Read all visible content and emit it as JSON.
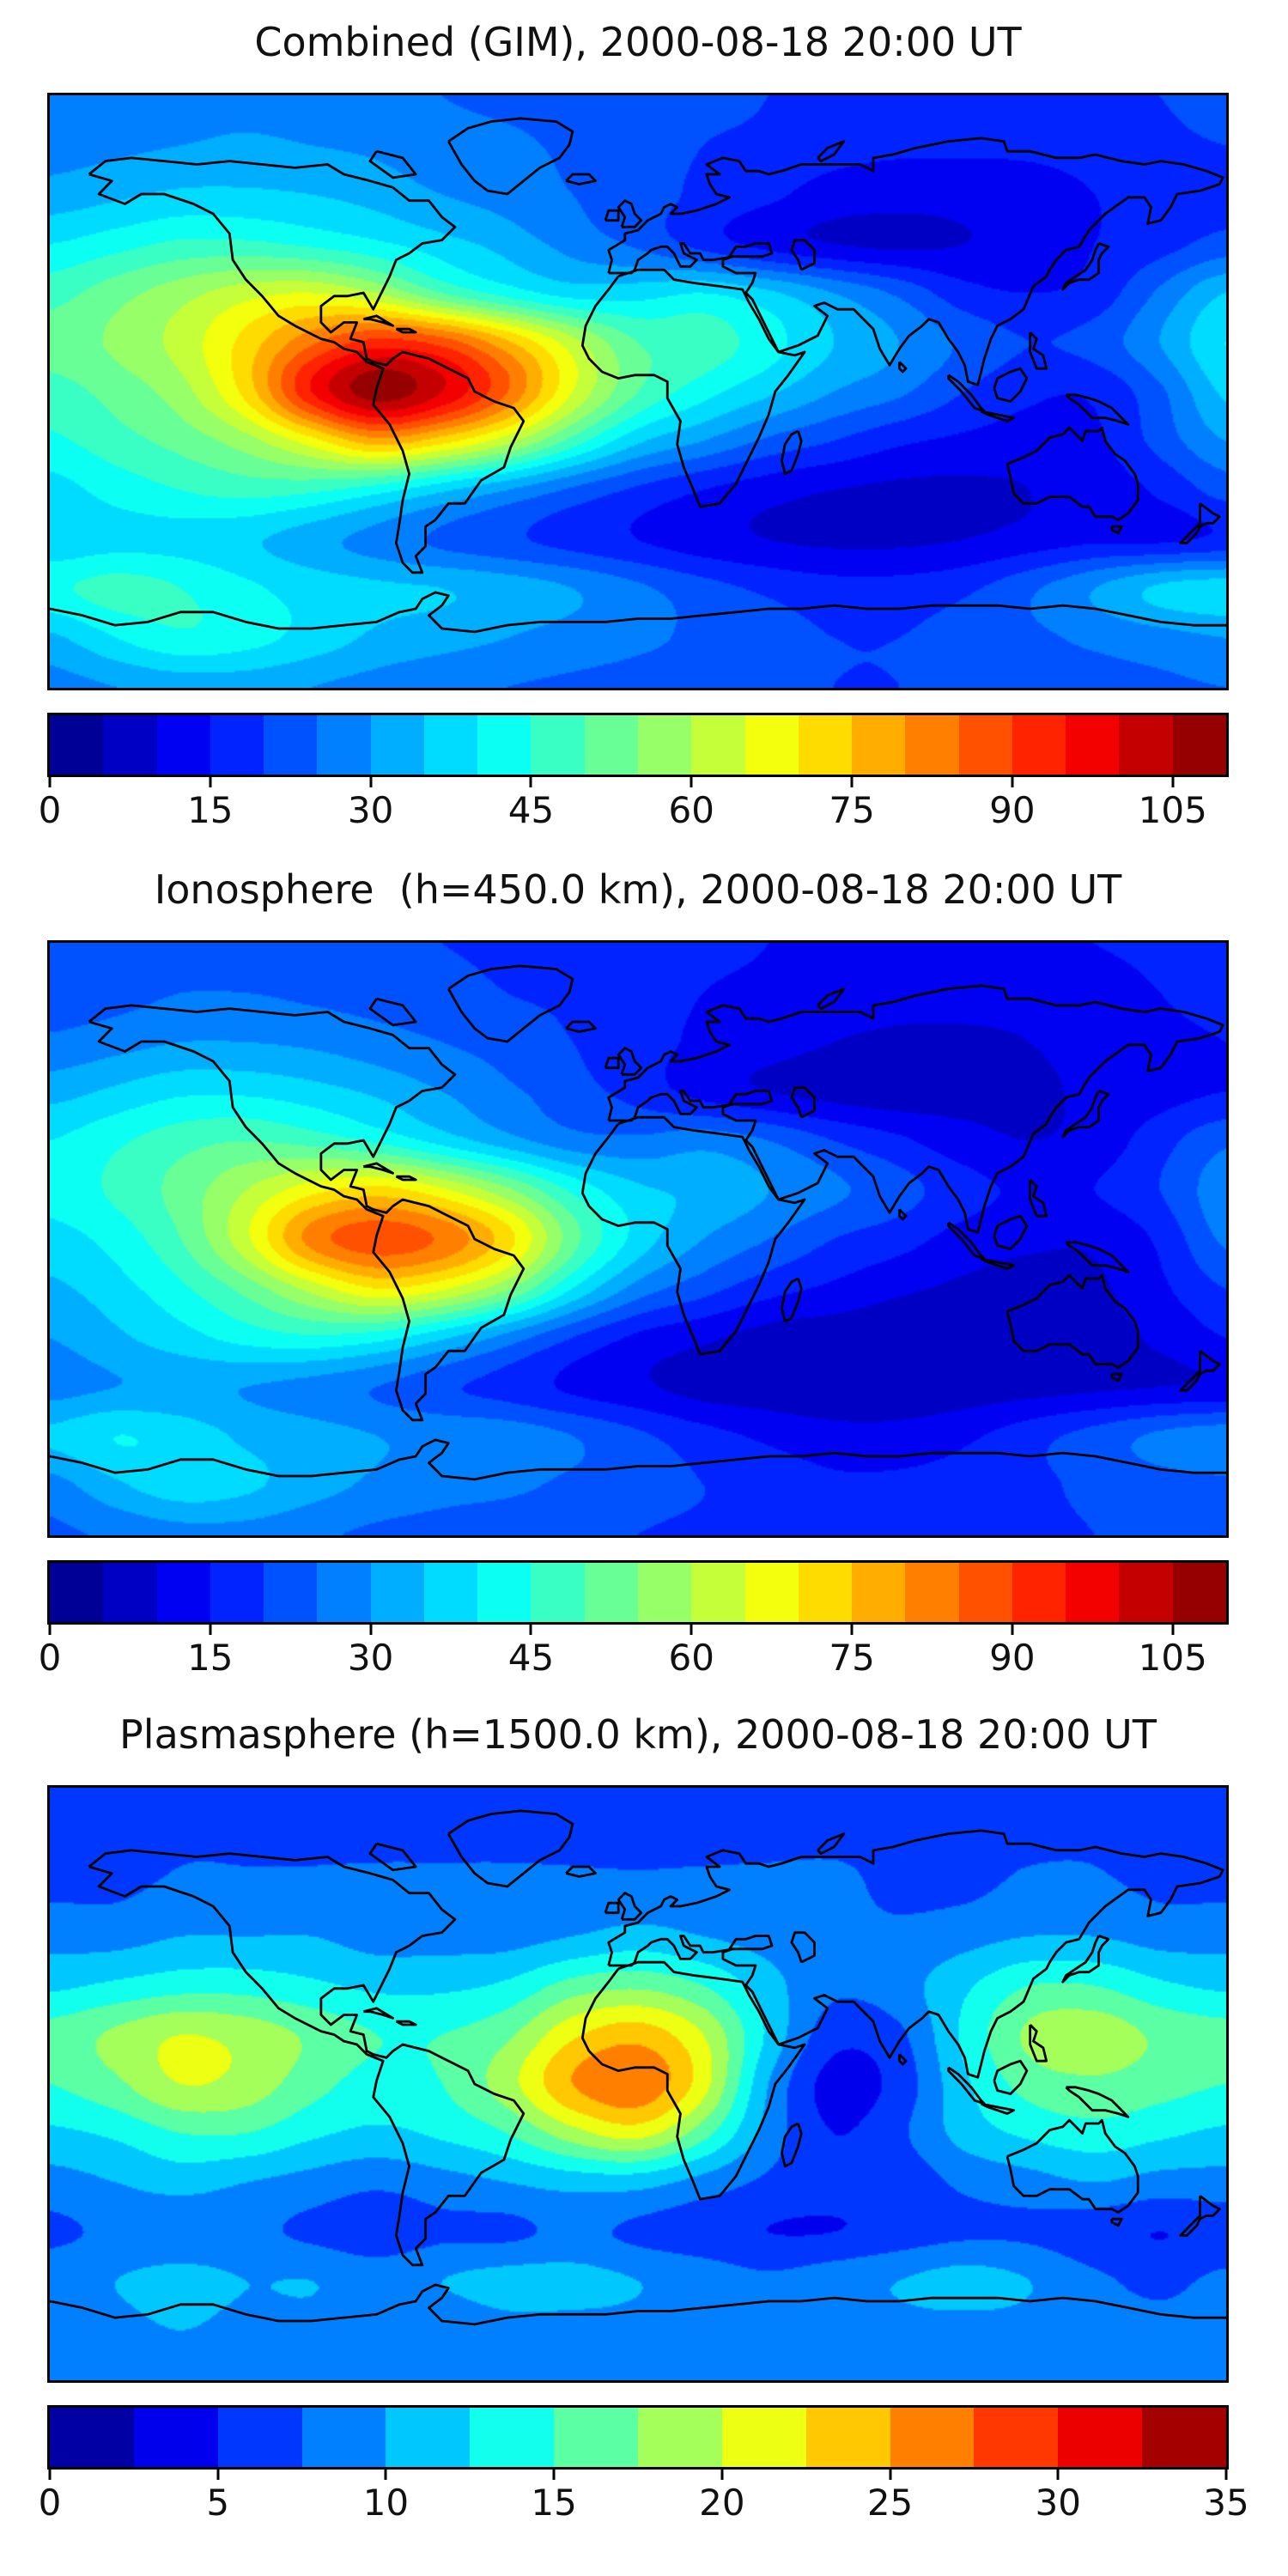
{
  "figure": {
    "background": "#ffffff",
    "n_panels": 3,
    "projection": "equirectangular",
    "lon_range": [
      -180,
      180
    ],
    "lat_range": [
      -90,
      90
    ],
    "colormap": "jet",
    "coastline_color": "#000000"
  },
  "chart_data": [
    {
      "type": "heatmap",
      "title": "Combined (GIM), 2000-08-18 20:00 UT",
      "levels": {
        "min": 0,
        "max": 110,
        "step": 5
      },
      "colorbar_ticks": [
        0,
        15,
        30,
        45,
        60,
        75,
        90,
        105
      ],
      "lons": [
        -180,
        -160,
        -140,
        -120,
        -100,
        -80,
        -60,
        -40,
        -20,
        0,
        20,
        40,
        60,
        80,
        100,
        120,
        140,
        160,
        180
      ],
      "lats": [
        90,
        75,
        60,
        45,
        30,
        15,
        0,
        -15,
        -30,
        -45,
        -60,
        -75,
        -90
      ],
      "values": [
        [
          27,
          28,
          28,
          28,
          27,
          26,
          25,
          24,
          23,
          22,
          21,
          20,
          19,
          18,
          18,
          18,
          19,
          20,
          21
        ],
        [
          28,
          29,
          30,
          31,
          30,
          29,
          27,
          26,
          24,
          22,
          20,
          19,
          17,
          16,
          16,
          16,
          17,
          19,
          20
        ],
        [
          32,
          34,
          36,
          36,
          35,
          33,
          30,
          28,
          25,
          22,
          19,
          16,
          13,
          12,
          12,
          13,
          15,
          17,
          18
        ],
        [
          40,
          43,
          46,
          46,
          44,
          41,
          37,
          33,
          28,
          24,
          18,
          13,
          10,
          9,
          10,
          12,
          15,
          18,
          22
        ],
        [
          48,
          53,
          58,
          63,
          65,
          60,
          50,
          43,
          38,
          38,
          40,
          36,
          30,
          24,
          17,
          15,
          17,
          26,
          35
        ],
        [
          52,
          56,
          62,
          72,
          84,
          92,
          88,
          76,
          62,
          50,
          48,
          42,
          35,
          30,
          24,
          20,
          22,
          30,
          40
        ],
        [
          48,
          52,
          58,
          72,
          95,
          108,
          100,
          85,
          65,
          50,
          42,
          36,
          30,
          26,
          20,
          16,
          16,
          24,
          36
        ],
        [
          44,
          48,
          52,
          58,
          68,
          78,
          72,
          62,
          48,
          36,
          30,
          24,
          20,
          16,
          14,
          13,
          14,
          22,
          30
        ],
        [
          38,
          42,
          45,
          47,
          46,
          42,
          36,
          30,
          24,
          19,
          15,
          12,
          10,
          9,
          9,
          10,
          12,
          16,
          22
        ],
        [
          36,
          38,
          38,
          36,
          32,
          28,
          24,
          21,
          18,
          15,
          12,
          10,
          9,
          9,
          10,
          12,
          14,
          14,
          16
        ],
        [
          44,
          47,
          45,
          41,
          38,
          36,
          35,
          33,
          30,
          26,
          22,
          19,
          17,
          17,
          19,
          24,
          30,
          36,
          38
        ],
        [
          34,
          40,
          44,
          42,
          38,
          34,
          32,
          30,
          28,
          26,
          24,
          22,
          20,
          20,
          22,
          24,
          26,
          28,
          30
        ],
        [
          28,
          30,
          32,
          32,
          30,
          28,
          26,
          25,
          24,
          23,
          22,
          21,
          20,
          20,
          21,
          22,
          23,
          24,
          25
        ]
      ]
    },
    {
      "type": "heatmap",
      "title": "Ionosphere  (h=450.0 km), 2000-08-18 20:00 UT",
      "levels": {
        "min": 0,
        "max": 110,
        "step": 5
      },
      "colorbar_ticks": [
        0,
        15,
        30,
        45,
        60,
        75,
        90,
        105
      ],
      "lons": [
        -180,
        -160,
        -140,
        -120,
        -100,
        -80,
        -60,
        -40,
        -20,
        0,
        20,
        40,
        60,
        80,
        100,
        120,
        140,
        160,
        180
      ],
      "lats": [
        90,
        75,
        60,
        45,
        30,
        15,
        0,
        -15,
        -30,
        -45,
        -60,
        -75,
        -90
      ],
      "values": [
        [
          20,
          21,
          22,
          22,
          22,
          21,
          20,
          19,
          18,
          17,
          16,
          15,
          14,
          14,
          14,
          14,
          15,
          16,
          17
        ],
        [
          22,
          23,
          25,
          25,
          24,
          23,
          22,
          20,
          19,
          17,
          15,
          14,
          13,
          12,
          12,
          12,
          13,
          15,
          16
        ],
        [
          26,
          28,
          30,
          30,
          29,
          27,
          25,
          23,
          20,
          17,
          14,
          12,
          10,
          9,
          9,
          10,
          12,
          14,
          15
        ],
        [
          33,
          36,
          39,
          39,
          37,
          34,
          30,
          26,
          22,
          18,
          13,
          10,
          8,
          7,
          8,
          9,
          11,
          13,
          15
        ],
        [
          40,
          44,
          48,
          50,
          48,
          44,
          38,
          32,
          27,
          26,
          28,
          25,
          20,
          16,
          12,
          10,
          12,
          18,
          24
        ],
        [
          42,
          46,
          52,
          60,
          68,
          72,
          66,
          56,
          44,
          36,
          34,
          30,
          26,
          22,
          17,
          14,
          15,
          20,
          28
        ],
        [
          38,
          42,
          50,
          64,
          82,
          88,
          84,
          72,
          52,
          38,
          30,
          25,
          20,
          17,
          13,
          11,
          11,
          16,
          26
        ],
        [
          34,
          38,
          44,
          52,
          62,
          70,
          66,
          56,
          40,
          28,
          22,
          17,
          14,
          11,
          9,
          8,
          9,
          14,
          20
        ],
        [
          30,
          34,
          38,
          42,
          44,
          42,
          36,
          28,
          20,
          14,
          11,
          8,
          7,
          6,
          6,
          7,
          8,
          11,
          15
        ],
        [
          28,
          30,
          31,
          30,
          28,
          25,
          21,
          18,
          14,
          11,
          8,
          7,
          6,
          6,
          7,
          8,
          9,
          10,
          11
        ],
        [
          36,
          40,
          38,
          34,
          32,
          30,
          29,
          28,
          25,
          21,
          17,
          14,
          12,
          12,
          14,
          18,
          22,
          26,
          28
        ],
        [
          28,
          34,
          38,
          36,
          32,
          29,
          27,
          26,
          24,
          22,
          20,
          18,
          16,
          16,
          17,
          19,
          21,
          23,
          24
        ],
        [
          24,
          26,
          28,
          28,
          26,
          24,
          23,
          22,
          21,
          20,
          19,
          18,
          17,
          17,
          18,
          19,
          20,
          21,
          22
        ]
      ]
    },
    {
      "type": "heatmap",
      "title": "Plasmasphere (h=1500.0 km), 2000-08-18 20:00 UT",
      "levels": {
        "min": 0,
        "max": 35,
        "step": 2.5
      },
      "colorbar_ticks": [
        0,
        5,
        10,
        15,
        20,
        25,
        30,
        35
      ],
      "lons": [
        -180,
        -160,
        -140,
        -120,
        -100,
        -80,
        -60,
        -40,
        -20,
        0,
        20,
        40,
        60,
        80,
        100,
        120,
        140,
        160,
        180
      ],
      "lats": [
        90,
        75,
        60,
        45,
        30,
        15,
        0,
        -15,
        -30,
        -45,
        -60,
        -75,
        -90
      ],
      "values": [
        [
          6,
          6,
          6,
          6,
          6,
          6,
          6,
          6,
          6,
          6,
          6,
          6,
          6,
          6,
          6,
          6,
          6,
          6,
          6
        ],
        [
          6,
          6,
          7,
          7,
          7,
          7,
          7,
          7,
          7,
          7,
          7,
          7,
          7,
          7,
          7,
          7,
          7,
          6,
          6
        ],
        [
          7,
          7,
          8,
          8,
          8,
          8,
          8,
          8,
          8,
          8,
          8,
          8,
          8,
          7,
          7,
          8,
          8,
          7,
          7
        ],
        [
          9,
          9,
          10,
          10,
          10,
          9,
          9,
          9,
          10,
          11,
          10,
          9,
          8,
          8,
          9,
          10,
          10,
          9,
          9
        ],
        [
          12,
          13,
          14,
          14,
          13,
          12,
          12,
          13,
          16,
          17,
          15,
          11,
          8,
          9,
          12,
          15,
          15,
          13,
          12
        ],
        [
          16,
          18,
          20,
          19,
          17,
          15,
          15,
          17,
          22,
          24,
          20,
          12,
          6,
          7,
          13,
          18,
          19,
          17,
          16
        ],
        [
          15,
          17,
          20,
          19,
          16,
          14,
          15,
          19,
          25,
          27,
          21,
          10,
          4,
          6,
          12,
          16,
          17,
          16,
          15
        ],
        [
          12,
          13,
          15,
          15,
          13,
          12,
          13,
          15,
          19,
          21,
          16,
          9,
          5,
          7,
          11,
          13,
          14,
          13,
          12
        ],
        [
          9,
          10,
          11,
          10,
          9,
          8,
          9,
          10,
          11,
          11,
          9,
          7,
          6,
          6,
          8,
          9,
          10,
          9,
          9
        ],
        [
          7,
          8,
          8,
          8,
          7,
          6,
          7,
          7,
          8,
          7,
          6,
          5,
          5,
          6,
          7,
          7,
          6,
          5,
          6
        ],
        [
          9,
          10,
          11,
          10,
          10,
          9,
          10,
          11,
          11,
          10,
          9,
          8,
          9,
          10,
          11,
          10,
          8,
          7,
          8
        ],
        [
          8,
          9,
          10,
          9,
          9,
          8,
          8,
          9,
          9,
          9,
          8,
          8,
          8,
          9,
          9,
          9,
          8,
          8,
          8
        ],
        [
          8,
          8,
          8,
          8,
          8,
          8,
          8,
          8,
          8,
          8,
          8,
          8,
          8,
          8,
          8,
          8,
          8,
          8,
          8
        ]
      ]
    }
  ]
}
